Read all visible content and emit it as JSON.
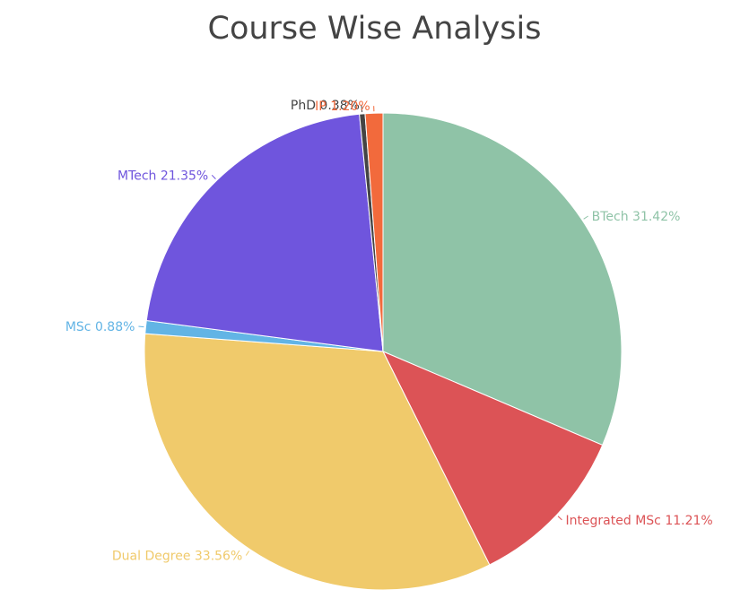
{
  "chart_data": {
    "type": "pie",
    "title": "Course Wise Analysis",
    "slices": [
      {
        "label": "BTech",
        "value": 31.42,
        "display": "BTech 31.42%",
        "color": "#8fc3a7"
      },
      {
        "label": "Integrated MSc",
        "value": 11.21,
        "display": "Integrated MSc 11.21%",
        "color": "#dc5356"
      },
      {
        "label": "Dual Degree",
        "value": 33.56,
        "display": "Dual Degree 33.56%",
        "color": "#f0ca6b"
      },
      {
        "label": "MSc",
        "value": 0.88,
        "display": "MSc 0.88%",
        "color": "#62b4e5"
      },
      {
        "label": "MTech",
        "value": 21.35,
        "display": "MTech 21.35%",
        "color": "#6f55dd"
      },
      {
        "label": "PhD",
        "value": 0.38,
        "display": "PhD 0.38%",
        "color": "#444444"
      },
      {
        "label": "IP",
        "value": 1.2,
        "display": "IP 1.20%",
        "color": "#f26a3c"
      }
    ],
    "start_angle": "12 o'clock",
    "direction": "clockwise",
    "legend": "none"
  }
}
